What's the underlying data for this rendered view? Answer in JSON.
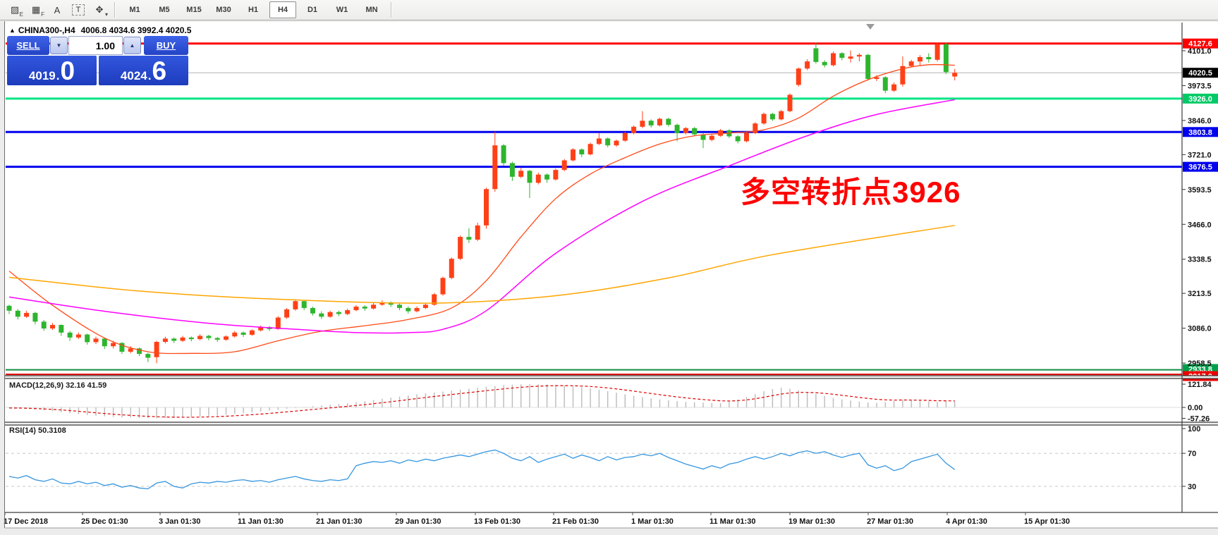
{
  "toolbar": {
    "tools": [
      {
        "name": "equidistant-channel-icon",
        "glyph": "▨",
        "sub": "E"
      },
      {
        "name": "fibonacci-grid-icon",
        "glyph": "▦",
        "sub": "F"
      },
      {
        "name": "text-tool-icon",
        "glyph": "A",
        "sub": ""
      },
      {
        "name": "text-label-icon",
        "glyph": "T",
        "sub": "",
        "boxed": true
      },
      {
        "name": "cycle-lines-icon",
        "glyph": "✥",
        "sub": "▾"
      }
    ],
    "timeframes": [
      "M1",
      "M5",
      "M15",
      "M30",
      "H1",
      "H4",
      "D1",
      "W1",
      "MN"
    ],
    "active_timeframe": "H4"
  },
  "chart_header": {
    "marker": "▲",
    "title": "CHINA300-,H4",
    "ohlc": "4006.8 4034.6 3992.4 4020.5"
  },
  "trade_panel": {
    "sell_label": "SELL",
    "buy_label": "BUY",
    "volume": "1.00",
    "spin_down": "▼",
    "spin_up": "▲",
    "sell_price_main": "4019",
    "sell_price_big": "0",
    "buy_price_main": "4024",
    "buy_price_big": "6",
    "panel_blue": "#2443c6"
  },
  "annotation": {
    "text": "多空转折点3926",
    "color": "#fe0000"
  },
  "indicators": {
    "macd_label": "MACD(12,26,9) 32.16 41.59",
    "rsi_label": "RSI(14) 50.3108",
    "macd_scale": [
      "121.84",
      "0.00",
      "-57.26"
    ],
    "rsi_scale": [
      "100",
      "70",
      "30"
    ]
  },
  "price_axis": {
    "ticks": [
      {
        "label": "4101.0",
        "price": 4101.0
      },
      {
        "label": "3973.5",
        "price": 3973.5
      },
      {
        "label": "3846.0",
        "price": 3846.0
      },
      {
        "label": "3721.0",
        "price": 3721.0
      },
      {
        "label": "3593.5",
        "price": 3593.5
      },
      {
        "label": "3466.0",
        "price": 3466.0
      },
      {
        "label": "3338.5",
        "price": 3338.5
      },
      {
        "label": "3213.5",
        "price": 3213.5
      },
      {
        "label": "3086.0",
        "price": 3086.0
      },
      {
        "label": "2958.5",
        "price": 2958.5
      }
    ],
    "badges": [
      {
        "label": "4127.6",
        "price": 4127.6,
        "color": "#ff0000"
      },
      {
        "label": "4020.5",
        "price": 4020.5,
        "color": "#000000"
      },
      {
        "label": "3926.0",
        "price": 3926.0,
        "color": "#00ca66"
      },
      {
        "label": "3803.8",
        "price": 3803.8,
        "color": "#0000ee"
      },
      {
        "label": "3676.5",
        "price": 3676.5,
        "color": "#0000ee"
      },
      {
        "label": "2933.8",
        "price": 2933.8,
        "color": "#00a04a",
        "stack": 0
      },
      {
        "label": "2917.0",
        "price": 2917.0,
        "color": "#ee0000",
        "stack": 1
      }
    ]
  },
  "time_axis": {
    "labels": [
      "17 Dec 2018",
      "25 Dec 01:30",
      "3 Jan 01:30",
      "11 Jan 01:30",
      "21 Jan 01:30",
      "29 Jan 01:30",
      "13 Feb 01:30",
      "21 Feb 01:30",
      "1 Mar 01:30",
      "11 Mar 01:30",
      "19 Mar 01:30",
      "27 Mar 01:30",
      "4 Apr 01:30",
      "15 Apr 01:30"
    ],
    "x": [
      5,
      115,
      225,
      337,
      448,
      560,
      672,
      783,
      895,
      1006,
      1118,
      1229,
      1341,
      1452
    ]
  },
  "chart_data": {
    "type": "candlestick",
    "symbol": "CHINA300-",
    "timeframe": "H4",
    "ylim": [
      2920,
      4202
    ],
    "colors": {
      "up": "#ff4017",
      "down": "#2db52d",
      "ma_fast": "#ff4a17",
      "ma_mid": "#ff00ff",
      "ma_slow": "#ffa500",
      "rsi": "#3596e0",
      "macd_hist": "#bbbbbb",
      "macd_signal": "#e00000",
      "current_price_line": "#b4b4b4"
    },
    "hlines": [
      {
        "price": 4127.6,
        "color": "#ff0000",
        "w": 3
      },
      {
        "price": 4020.5,
        "color": "#b4b4b4",
        "w": 1
      },
      {
        "price": 3926.0,
        "color": "#00e584",
        "w": 3
      },
      {
        "price": 3803.8,
        "color": "#0000ee",
        "w": 3
      },
      {
        "price": 3676.5,
        "color": "#0000ee",
        "w": 3
      },
      {
        "price": 2933.8,
        "color": "#118a42",
        "w": 2
      },
      {
        "price": 2917.0,
        "color": "#e00000",
        "w": 2
      }
    ],
    "candles": [
      [
        3168,
        3172,
        3138,
        3150
      ],
      [
        3150,
        3156,
        3118,
        3128
      ],
      [
        3128,
        3150,
        3124,
        3142
      ],
      [
        3142,
        3146,
        3100,
        3110
      ],
      [
        3110,
        3116,
        3076,
        3085
      ],
      [
        3085,
        3105,
        3080,
        3098
      ],
      [
        3098,
        3100,
        3058,
        3070
      ],
      [
        3070,
        3076,
        3040,
        3052
      ],
      [
        3052,
        3070,
        3046,
        3063
      ],
      [
        3063,
        3066,
        3026,
        3035
      ],
      [
        3035,
        3055,
        3028,
        3048
      ],
      [
        3048,
        3052,
        3010,
        3020
      ],
      [
        3020,
        3040,
        3012,
        3032
      ],
      [
        3032,
        3035,
        2992,
        3000
      ],
      [
        3000,
        3020,
        2994,
        3012
      ],
      [
        3012,
        3015,
        2984,
        2992
      ],
      [
        2992,
        2996,
        2962,
        2978
      ],
      [
        2980,
        3040,
        2958,
        3036
      ],
      [
        3036,
        3055,
        3030,
        3048
      ],
      [
        3048,
        3052,
        3032,
        3040
      ],
      [
        3040,
        3058,
        3036,
        3052
      ],
      [
        3052,
        3056,
        3038,
        3046
      ],
      [
        3046,
        3064,
        3042,
        3058
      ],
      [
        3058,
        3062,
        3042,
        3050
      ],
      [
        3050,
        3054,
        3036,
        3044
      ],
      [
        3044,
        3060,
        3040,
        3056
      ],
      [
        3056,
        3076,
        3052,
        3070
      ],
      [
        3070,
        3074,
        3054,
        3062
      ],
      [
        3062,
        3082,
        3058,
        3078
      ],
      [
        3078,
        3096,
        3074,
        3090
      ],
      [
        3090,
        3094,
        3076,
        3083
      ],
      [
        3083,
        3130,
        3080,
        3125
      ],
      [
        3125,
        3160,
        3120,
        3155
      ],
      [
        3155,
        3190,
        3150,
        3185
      ],
      [
        3185,
        3188,
        3152,
        3160
      ],
      [
        3160,
        3165,
        3132,
        3140
      ],
      [
        3140,
        3148,
        3120,
        3128
      ],
      [
        3128,
        3150,
        3124,
        3145
      ],
      [
        3145,
        3150,
        3130,
        3138
      ],
      [
        3138,
        3158,
        3134,
        3152
      ],
      [
        3152,
        3170,
        3148,
        3165
      ],
      [
        3165,
        3170,
        3150,
        3158
      ],
      [
        3158,
        3178,
        3154,
        3172
      ],
      [
        3172,
        3188,
        3168,
        3180
      ],
      [
        3180,
        3184,
        3164,
        3172
      ],
      [
        3172,
        3176,
        3152,
        3160
      ],
      [
        3160,
        3166,
        3140,
        3148
      ],
      [
        3148,
        3166,
        3144,
        3160
      ],
      [
        3160,
        3178,
        3156,
        3172
      ],
      [
        3172,
        3215,
        3168,
        3210
      ],
      [
        3210,
        3275,
        3205,
        3270
      ],
      [
        3270,
        3345,
        3265,
        3340
      ],
      [
        3340,
        3425,
        3335,
        3420
      ],
      [
        3420,
        3452,
        3398,
        3410
      ],
      [
        3410,
        3472,
        3405,
        3462
      ],
      [
        3462,
        3600,
        3450,
        3595
      ],
      [
        3595,
        3805,
        3585,
        3755
      ],
      [
        3755,
        3760,
        3680,
        3690
      ],
      [
        3690,
        3695,
        3625,
        3640
      ],
      [
        3640,
        3672,
        3635,
        3662
      ],
      [
        3662,
        3665,
        3562,
        3618
      ],
      [
        3618,
        3655,
        3612,
        3648
      ],
      [
        3648,
        3652,
        3618,
        3630
      ],
      [
        3630,
        3670,
        3626,
        3665
      ],
      [
        3665,
        3705,
        3660,
        3700
      ],
      [
        3700,
        3745,
        3696,
        3740
      ],
      [
        3740,
        3744,
        3712,
        3722
      ],
      [
        3722,
        3765,
        3718,
        3760
      ],
      [
        3760,
        3800,
        3756,
        3780
      ],
      [
        3780,
        3784,
        3748,
        3755
      ],
      [
        3755,
        3776,
        3750,
        3772
      ],
      [
        3772,
        3805,
        3768,
        3800
      ],
      [
        3800,
        3828,
        3795,
        3823
      ],
      [
        3823,
        3880,
        3818,
        3845
      ],
      [
        3845,
        3850,
        3820,
        3828
      ],
      [
        3828,
        3856,
        3824,
        3852
      ],
      [
        3852,
        3856,
        3824,
        3830
      ],
      [
        3830,
        3834,
        3770,
        3800
      ],
      [
        3800,
        3822,
        3795,
        3818
      ],
      [
        3818,
        3822,
        3788,
        3795
      ],
      [
        3795,
        3800,
        3745,
        3775
      ],
      [
        3775,
        3795,
        3770,
        3790
      ],
      [
        3790,
        3815,
        3786,
        3810
      ],
      [
        3810,
        3814,
        3782,
        3788
      ],
      [
        3788,
        3792,
        3762,
        3770
      ],
      [
        3770,
        3805,
        3766,
        3800
      ],
      [
        3800,
        3840,
        3796,
        3835
      ],
      [
        3835,
        3875,
        3830,
        3870
      ],
      [
        3870,
        3874,
        3844,
        3850
      ],
      [
        3850,
        3885,
        3846,
        3880
      ],
      [
        3880,
        3945,
        3876,
        3940
      ],
      [
        3976,
        4040,
        3970,
        4036
      ],
      [
        4036,
        4070,
        4030,
        4062
      ],
      [
        4110,
        4131,
        4054,
        4060
      ],
      [
        4060,
        4066,
        4040,
        4048
      ],
      [
        4048,
        4098,
        4044,
        4092
      ],
      [
        4092,
        4096,
        4066,
        4075
      ],
      [
        4072,
        4102,
        4058,
        4080
      ],
      [
        4080,
        4092,
        4062,
        4086
      ],
      [
        4086,
        4090,
        3992,
        3998
      ],
      [
        3998,
        4012,
        3990,
        4004
      ],
      [
        4004,
        4008,
        3946,
        3955
      ],
      [
        3955,
        3985,
        3950,
        3978
      ],
      [
        3978,
        4080,
        3970,
        4045
      ],
      [
        4045,
        4068,
        4040,
        4062
      ],
      [
        4062,
        4085,
        4048,
        4078
      ],
      [
        4078,
        4092,
        4058,
        4070
      ],
      [
        4068,
        4131,
        4062,
        4125
      ],
      [
        4125,
        4130,
        4016,
        4023
      ],
      [
        4006.8,
        4034.6,
        3992.4,
        4020.5
      ]
    ],
    "ma_lines": {
      "fast": [
        [
          0,
          3295
        ],
        [
          5,
          3170
        ],
        [
          11,
          3050
        ],
        [
          16,
          3000
        ],
        [
          21,
          2994
        ],
        [
          26,
          3000
        ],
        [
          31,
          3040
        ],
        [
          36,
          3075
        ],
        [
          41,
          3095
        ],
        [
          46,
          3118
        ],
        [
          51,
          3160
        ],
        [
          55,
          3260
        ],
        [
          59,
          3420
        ],
        [
          63,
          3560
        ],
        [
          67,
          3650
        ],
        [
          71,
          3710
        ],
        [
          75,
          3760
        ],
        [
          79,
          3790
        ],
        [
          83,
          3800
        ],
        [
          87,
          3812
        ],
        [
          91,
          3855
        ],
        [
          95,
          3935
        ],
        [
          99,
          3995
        ],
        [
          103,
          4035
        ],
        [
          106,
          4050
        ],
        [
          109,
          4048
        ]
      ],
      "mid": [
        [
          0,
          3200
        ],
        [
          11,
          3148
        ],
        [
          23,
          3104
        ],
        [
          33,
          3082
        ],
        [
          40,
          3070
        ],
        [
          46,
          3070
        ],
        [
          50,
          3082
        ],
        [
          55,
          3150
        ],
        [
          63,
          3360
        ],
        [
          73,
          3550
        ],
        [
          83,
          3680
        ],
        [
          92,
          3790
        ],
        [
          100,
          3868
        ],
        [
          109,
          3922
        ]
      ],
      "slow": [
        [
          0,
          3272
        ],
        [
          15,
          3222
        ],
        [
          31,
          3192
        ],
        [
          49,
          3178
        ],
        [
          63,
          3205
        ],
        [
          76,
          3270
        ],
        [
          88,
          3355
        ],
        [
          109,
          3462
        ]
      ]
    },
    "macd": {
      "scale_max": 121.84,
      "scale_min": -57.26,
      "current_main": 32.16,
      "current_signal": 41.59,
      "hist": [
        -3,
        -5,
        -8,
        -12,
        -16,
        -20,
        -25,
        -30,
        -35,
        -40,
        -44,
        -47,
        -50,
        -52,
        -53,
        -55,
        -56,
        -57,
        -56,
        -55,
        -53,
        -51,
        -48,
        -45,
        -42,
        -38,
        -34,
        -30,
        -26,
        -22,
        -17,
        -12,
        -7,
        -3,
        2,
        6,
        10,
        14,
        18,
        22,
        27,
        33,
        39,
        45,
        51,
        57,
        63,
        69,
        74,
        78,
        83,
        88,
        93,
        98,
        103,
        108,
        112,
        116,
        119,
        121,
        122,
        121,
        120,
        118,
        115,
        111,
        106,
        100,
        93,
        85,
        77,
        69,
        61,
        54,
        48,
        42,
        37,
        33,
        29,
        27,
        25,
        23,
        22,
        30,
        42,
        55,
        70,
        85,
        96,
        103,
        98,
        90,
        80,
        70,
        60,
        50,
        42,
        36,
        30,
        26,
        24,
        28,
        34,
        40,
        38,
        35,
        31,
        29,
        33,
        32.16
      ]
    },
    "rsi": {
      "levels": [
        70,
        30
      ],
      "current": 50.3108,
      "values": [
        42,
        40,
        43,
        38,
        36,
        39,
        34,
        33,
        36,
        33,
        35,
        31,
        33,
        29,
        31,
        28,
        27,
        34,
        36,
        30,
        28,
        33,
        35,
        34,
        36,
        35,
        37,
        38,
        36,
        37,
        35,
        38,
        40,
        42,
        39,
        37,
        36,
        38,
        37,
        39,
        55,
        58,
        60,
        59,
        61,
        58,
        62,
        60,
        63,
        61,
        64,
        66,
        68,
        66,
        69,
        72,
        74,
        70,
        64,
        61,
        66,
        59,
        63,
        66,
        69,
        64,
        68,
        65,
        61,
        66,
        62,
        65,
        66,
        69,
        67,
        70,
        65,
        61,
        57,
        54,
        51,
        55,
        52,
        57,
        59,
        63,
        66,
        63,
        66,
        70,
        67,
        71,
        73,
        70,
        72,
        68,
        65,
        68,
        70,
        56,
        52,
        55,
        49,
        52,
        60,
        63,
        66,
        69,
        58,
        50.3
      ]
    }
  }
}
